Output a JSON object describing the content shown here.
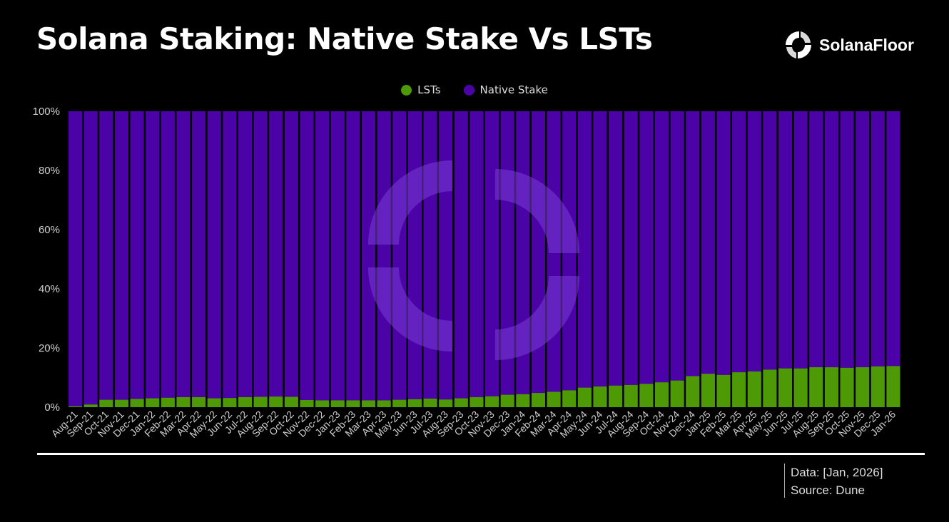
{
  "header": {
    "title": "Solana Staking: Native Stake Vs LSTs",
    "brand_name": "SolanaFloor",
    "brand_icon": "solana-floor-logo-icon"
  },
  "footer": {
    "data_note": "Data: [Jan, 2026]",
    "source_note": "Source: Dune"
  },
  "colors": {
    "lst": "#4e9a06",
    "native": "#4b03a8",
    "watermark": "#7a3fd6"
  },
  "chart_data": {
    "type": "bar",
    "stacked": true,
    "normalized": true,
    "title": "Solana Staking: Native Stake Vs LSTs",
    "xlabel": "",
    "ylabel": "",
    "ylim": [
      0,
      100
    ],
    "y_ticks": [
      "0%",
      "20%",
      "40%",
      "60%",
      "80%",
      "100%"
    ],
    "legend_position": "top-center",
    "grid": false,
    "categories": [
      "Aug-21",
      "Sep-21",
      "Oct-21",
      "Nov-21",
      "Dec-21",
      "Jan-22",
      "Feb-22",
      "Mar-22",
      "Apr-22",
      "May-22",
      "Jun-22",
      "Jul-22",
      "Aug-22",
      "Sep-22",
      "Oct-22",
      "Nov-22",
      "Dec-22",
      "Jan-23",
      "Feb-23",
      "Mar-23",
      "Apr-23",
      "May-23",
      "Jun-23",
      "Jul-23",
      "Aug-23",
      "Sep-23",
      "Oct-23",
      "Nov-23",
      "Dec-23",
      "Jan-24",
      "Feb-24",
      "Mar-24",
      "Apr-24",
      "May-24",
      "Jun-24",
      "Jul-24",
      "Aug-24",
      "Sep-24",
      "Oct-24",
      "Nov-24",
      "Dec-24",
      "Jan-25",
      "Feb-25",
      "Mar-25",
      "Apr-25",
      "May-25",
      "Jun-25",
      "Jul-25",
      "Aug-25",
      "Sep-25",
      "Oct-25",
      "Nov-25",
      "Dec-25",
      "Jan-26"
    ],
    "series": [
      {
        "name": "LSTs",
        "color": "#4e9a06",
        "values": [
          0.3,
          0.9,
          2.5,
          2.5,
          2.8,
          3.0,
          3.2,
          3.4,
          3.4,
          3.0,
          3.1,
          3.4,
          3.5,
          3.6,
          3.5,
          2.4,
          2.3,
          2.3,
          2.3,
          2.3,
          2.3,
          2.5,
          2.7,
          2.9,
          2.6,
          3.0,
          3.4,
          3.7,
          4.2,
          4.4,
          4.8,
          5.2,
          5.7,
          6.6,
          7.0,
          7.3,
          7.5,
          7.9,
          8.4,
          9.0,
          10.5,
          11.3,
          10.9,
          11.8,
          12.1,
          12.7,
          13.1,
          13.1,
          13.5,
          13.5,
          13.3,
          13.5,
          13.8,
          13.9
        ]
      },
      {
        "name": "Native Stake",
        "color": "#4b03a8",
        "values": [
          99.7,
          99.1,
          97.5,
          97.5,
          97.2,
          97.0,
          96.8,
          96.6,
          96.6,
          97.0,
          96.9,
          96.6,
          96.5,
          96.4,
          96.5,
          97.6,
          97.7,
          97.7,
          97.7,
          97.7,
          97.7,
          97.5,
          97.3,
          97.1,
          97.4,
          97.0,
          96.6,
          96.3,
          95.8,
          95.6,
          95.2,
          94.8,
          94.3,
          93.4,
          93.0,
          92.7,
          92.5,
          92.1,
          91.6,
          91.0,
          89.5,
          88.7,
          89.1,
          88.2,
          87.9,
          87.3,
          86.9,
          86.9,
          86.5,
          86.5,
          86.7,
          86.5,
          86.2,
          86.1
        ]
      }
    ]
  }
}
